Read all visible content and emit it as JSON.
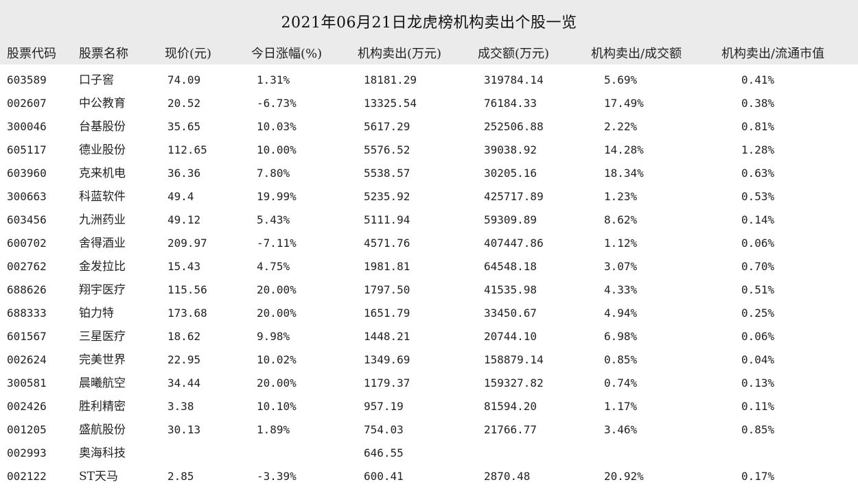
{
  "title": "2021年06月21日龙虎榜机构卖出个股一览",
  "columns": [
    "股票代码",
    "股票名称",
    "现价(元)",
    "今日涨幅(%)",
    "机构卖出(万元)",
    "成交额(万元)",
    "机构卖出/成交额",
    "机构卖出/流通市值"
  ],
  "rows": [
    {
      "code": "603589",
      "name": "口子窖",
      "price": "74.09",
      "change": "1.31%",
      "inst_sell": "18181.29",
      "turnover": "319784.14",
      "sell_turnover_ratio": "5.69%",
      "sell_float_ratio": "0.41%"
    },
    {
      "code": "002607",
      "name": "中公教育",
      "price": "20.52",
      "change": "-6.73%",
      "inst_sell": "13325.54",
      "turnover": "76184.33",
      "sell_turnover_ratio": "17.49%",
      "sell_float_ratio": "0.38%"
    },
    {
      "code": "300046",
      "name": "台基股份",
      "price": "35.65",
      "change": "10.03%",
      "inst_sell": "5617.29",
      "turnover": "252506.88",
      "sell_turnover_ratio": "2.22%",
      "sell_float_ratio": "0.81%"
    },
    {
      "code": "605117",
      "name": "德业股份",
      "price": "112.65",
      "change": "10.00%",
      "inst_sell": "5576.52",
      "turnover": "39038.92",
      "sell_turnover_ratio": "14.28%",
      "sell_float_ratio": "1.28%"
    },
    {
      "code": "603960",
      "name": "克来机电",
      "price": "36.36",
      "change": "7.80%",
      "inst_sell": "5538.57",
      "turnover": "30205.16",
      "sell_turnover_ratio": "18.34%",
      "sell_float_ratio": "0.63%"
    },
    {
      "code": "300663",
      "name": "科蓝软件",
      "price": "49.4",
      "change": "19.99%",
      "inst_sell": "5235.92",
      "turnover": "425717.89",
      "sell_turnover_ratio": "1.23%",
      "sell_float_ratio": "0.53%"
    },
    {
      "code": "603456",
      "name": "九洲药业",
      "price": "49.12",
      "change": "5.43%",
      "inst_sell": "5111.94",
      "turnover": "59309.89",
      "sell_turnover_ratio": "8.62%",
      "sell_float_ratio": "0.14%"
    },
    {
      "code": "600702",
      "name": "舍得酒业",
      "price": "209.97",
      "change": "-7.11%",
      "inst_sell": "4571.76",
      "turnover": "407447.86",
      "sell_turnover_ratio": "1.12%",
      "sell_float_ratio": "0.06%"
    },
    {
      "code": "002762",
      "name": "金发拉比",
      "price": "15.43",
      "change": "4.75%",
      "inst_sell": "1981.81",
      "turnover": "64548.18",
      "sell_turnover_ratio": "3.07%",
      "sell_float_ratio": "0.70%"
    },
    {
      "code": "688626",
      "name": "翔宇医疗",
      "price": "115.56",
      "change": "20.00%",
      "inst_sell": "1797.50",
      "turnover": "41535.98",
      "sell_turnover_ratio": "4.33%",
      "sell_float_ratio": "0.51%"
    },
    {
      "code": "688333",
      "name": "铂力特",
      "price": "173.68",
      "change": "20.00%",
      "inst_sell": "1651.79",
      "turnover": "33450.67",
      "sell_turnover_ratio": "4.94%",
      "sell_float_ratio": "0.25%"
    },
    {
      "code": "601567",
      "name": "三星医疗",
      "price": "18.62",
      "change": "9.98%",
      "inst_sell": "1448.21",
      "turnover": "20744.10",
      "sell_turnover_ratio": "6.98%",
      "sell_float_ratio": "0.06%"
    },
    {
      "code": "002624",
      "name": "完美世界",
      "price": "22.95",
      "change": "10.02%",
      "inst_sell": "1349.69",
      "turnover": "158879.14",
      "sell_turnover_ratio": "0.85%",
      "sell_float_ratio": "0.04%"
    },
    {
      "code": "300581",
      "name": "晨曦航空",
      "price": "34.44",
      "change": "20.00%",
      "inst_sell": "1179.37",
      "turnover": "159327.82",
      "sell_turnover_ratio": "0.74%",
      "sell_float_ratio": "0.13%"
    },
    {
      "code": "002426",
      "name": "胜利精密",
      "price": "3.38",
      "change": "10.10%",
      "inst_sell": "957.19",
      "turnover": "81594.20",
      "sell_turnover_ratio": "1.17%",
      "sell_float_ratio": "0.11%"
    },
    {
      "code": "001205",
      "name": "盛航股份",
      "price": "30.13",
      "change": "1.89%",
      "inst_sell": "754.03",
      "turnover": "21766.77",
      "sell_turnover_ratio": "3.46%",
      "sell_float_ratio": "0.85%"
    },
    {
      "code": "002993",
      "name": "奥海科技",
      "price": "",
      "change": "",
      "inst_sell": "646.55",
      "turnover": "",
      "sell_turnover_ratio": "",
      "sell_float_ratio": ""
    },
    {
      "code": "002122",
      "name": "ST天马",
      "price": "2.85",
      "change": "-3.39%",
      "inst_sell": "600.41",
      "turnover": "2870.48",
      "sell_turnover_ratio": "20.92%",
      "sell_float_ratio": "0.17%"
    }
  ]
}
